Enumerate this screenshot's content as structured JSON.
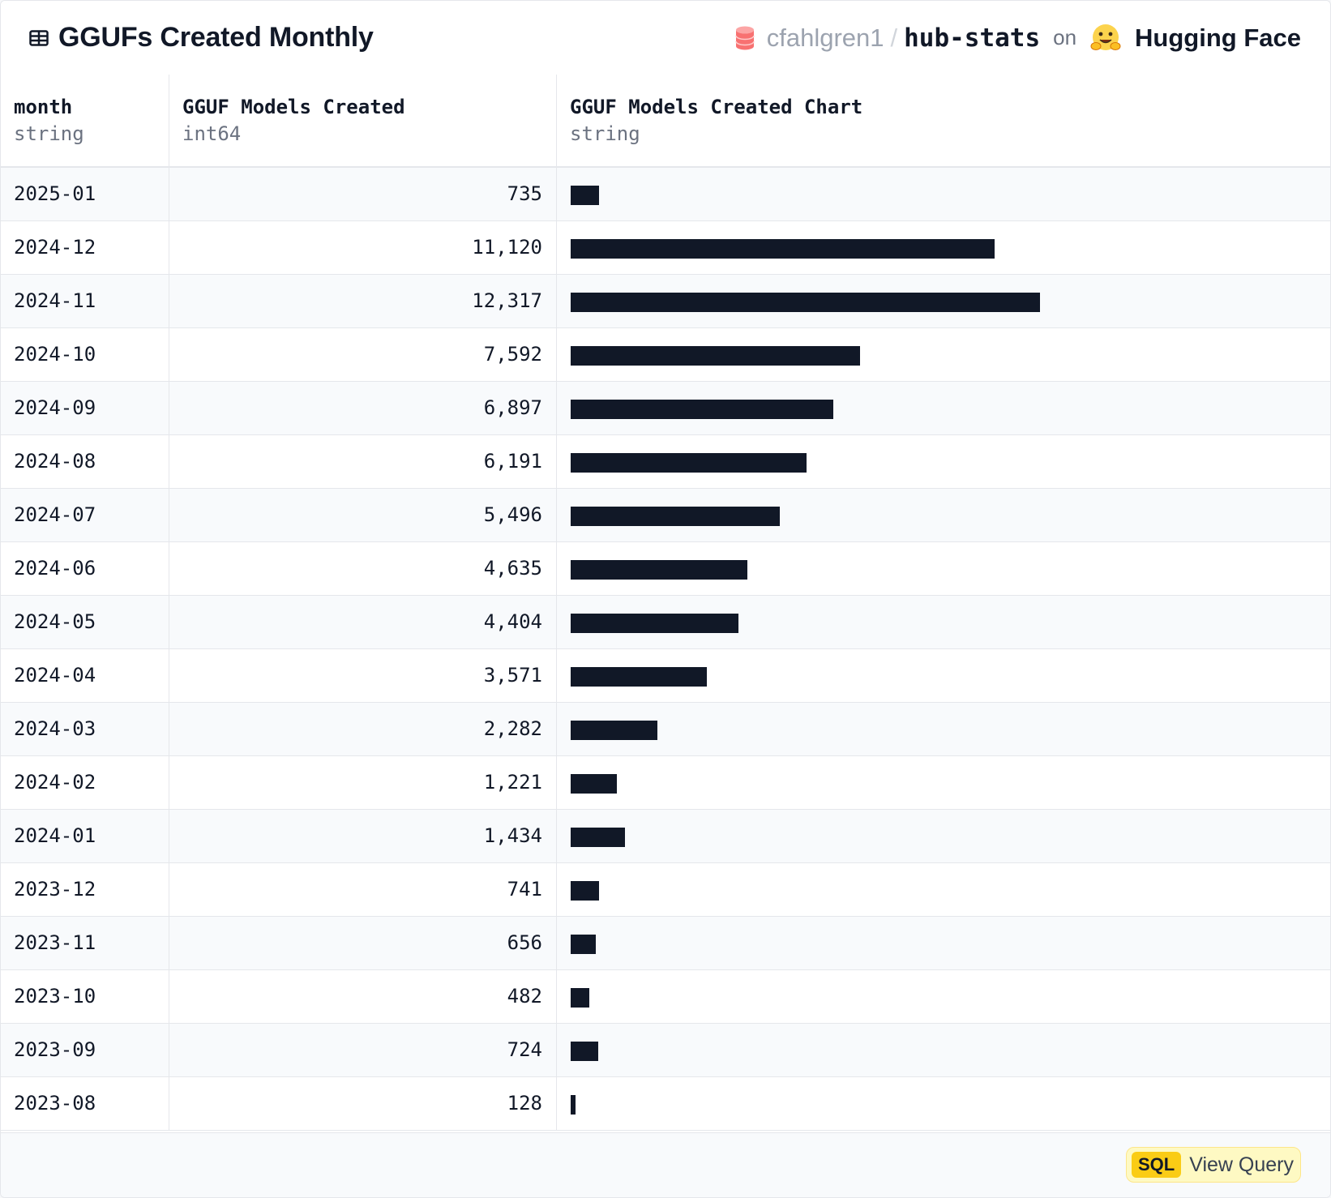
{
  "header": {
    "title": "GGUFs Created Monthly",
    "table_icon": "table-icon",
    "dataset_owner": "cfahlgren1",
    "separator": "/",
    "dataset_name": "hub-stats",
    "on_text": "on",
    "platform": "Hugging Face",
    "db_icon": "database-icon",
    "platform_icon": "hugging-face-emoji-icon"
  },
  "table": {
    "columns": [
      {
        "name": "month",
        "type": "string"
      },
      {
        "name": "GGUF Models Created",
        "type": "int64"
      },
      {
        "name": "GGUF Models Created Chart",
        "type": "string"
      }
    ],
    "rows": [
      {
        "month": "2025-01",
        "count": "735",
        "value": 735
      },
      {
        "month": "2024-12",
        "count": "11,120",
        "value": 11120
      },
      {
        "month": "2024-11",
        "count": "12,317",
        "value": 12317
      },
      {
        "month": "2024-10",
        "count": "7,592",
        "value": 7592
      },
      {
        "month": "2024-09",
        "count": "6,897",
        "value": 6897
      },
      {
        "month": "2024-08",
        "count": "6,191",
        "value": 6191
      },
      {
        "month": "2024-07",
        "count": "5,496",
        "value": 5496
      },
      {
        "month": "2024-06",
        "count": "4,635",
        "value": 4635
      },
      {
        "month": "2024-05",
        "count": "4,404",
        "value": 4404
      },
      {
        "month": "2024-04",
        "count": "3,571",
        "value": 3571
      },
      {
        "month": "2024-03",
        "count": "2,282",
        "value": 2282
      },
      {
        "month": "2024-02",
        "count": "1,221",
        "value": 1221
      },
      {
        "month": "2024-01",
        "count": "1,434",
        "value": 1434
      },
      {
        "month": "2023-12",
        "count": "741",
        "value": 741
      },
      {
        "month": "2023-11",
        "count": "656",
        "value": 656
      },
      {
        "month": "2023-10",
        "count": "482",
        "value": 482
      },
      {
        "month": "2023-09",
        "count": "724",
        "value": 724
      },
      {
        "month": "2023-08",
        "count": "128",
        "value": 128
      }
    ]
  },
  "footer": {
    "sql_badge": "SQL",
    "view_query_label": "View Query"
  },
  "colors": {
    "bar": "#111827",
    "sql_badge": "#facc15",
    "view_query_bg": "#fef9c3"
  }
}
